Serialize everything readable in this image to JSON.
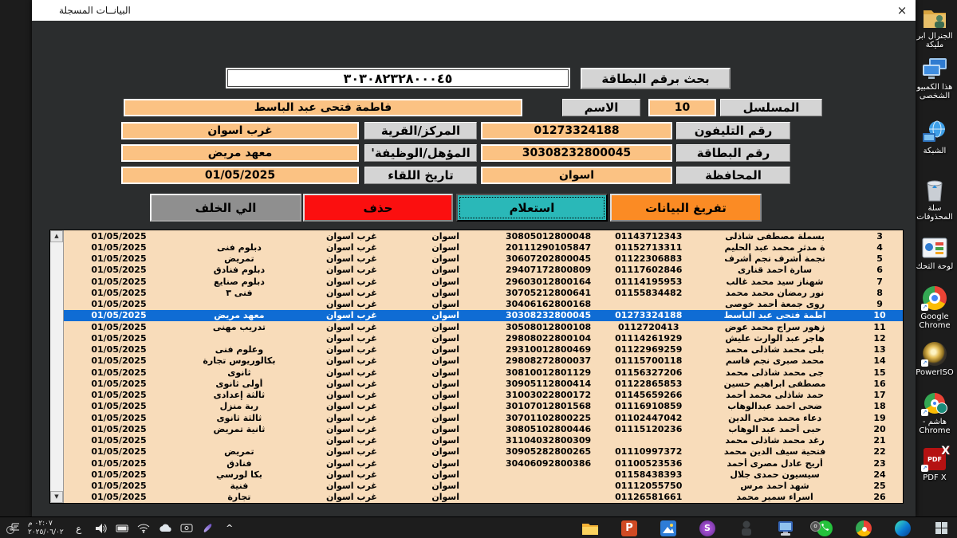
{
  "colors": {
    "window_bg": "#2b2d2e",
    "field_peach": "#fbc283",
    "table_peach": "#f8dcba",
    "selected_blue": "#0f6cd4",
    "button_orange": "#fb8b24",
    "button_teal": "#2ab8b8",
    "button_red": "#fb0f0f",
    "button_gray": "#8f8f8f"
  },
  "window": {
    "title": "البيانــات المسجلة",
    "close_label": "×"
  },
  "search": {
    "value": "٣٠٣٠٨٢٣٢٨٠٠٠٤٥",
    "button_label": "بحث برقم البطاقة"
  },
  "form": {
    "serial_label": "المسلسل",
    "serial_value": "10",
    "name_label": "الاسم",
    "name_value": "فاطمة فتحى عبد الباسط",
    "phone_label": "رقم التليفون",
    "phone_value": "01273324188",
    "center_label": "المركز/القرية",
    "center_value": "غرب اسوان",
    "card_label": "رقم البطاقة",
    "card_value": "30308232800045",
    "qual_label": "المؤهل/الوظيفة'",
    "qual_value": "معهد مريض",
    "gov_label": "المحافظة",
    "gov_value": "اسوان",
    "date_label": "تاريخ اللقاء",
    "date_value": "01/05/2025"
  },
  "buttons": {
    "export": "تفريغ البيانات",
    "inquiry": "استعلام",
    "delete": "حذف",
    "back": "الي الخلف"
  },
  "table": {
    "selected_serial": "10",
    "rows": [
      {
        "n": "3",
        "name": "بسملة مصطفى شاذلى",
        "phone": "01143712343",
        "card": "30805012800048",
        "gov": "اسوان",
        "center": "غرب اسوان",
        "qual": "",
        "date": "01/05/2025"
      },
      {
        "n": "4",
        "name": "ة مدثر محمد عبد الحليم",
        "phone": "01152713311",
        "card": "20111290105847",
        "gov": "اسوان",
        "center": "غرب اسوان",
        "qual": "دبلوم فنى",
        "date": "01/05/2025"
      },
      {
        "n": "5",
        "name": "نجمة أشرف نجم أشرف",
        "phone": "01122306883",
        "card": "30607202800045",
        "gov": "اسوان",
        "center": "غرب اسوان",
        "qual": "تمريض",
        "date": "01/05/2025"
      },
      {
        "n": "6",
        "name": "سارة احمد قنارى",
        "phone": "01117602846",
        "card": "29407172800809",
        "gov": "اسوان",
        "center": "غرب اسوان",
        "qual": "دبلوم فنادق",
        "date": "01/05/2025"
      },
      {
        "n": "7",
        "name": "شهناز سيد محمد غالب",
        "phone": "01114195953",
        "card": "29603012800164",
        "gov": "اسوان",
        "center": "غرب اسوان",
        "qual": "دبلوم صنايع",
        "date": "01/05/2025"
      },
      {
        "n": "8",
        "name": "نور رمضان محمد محمد",
        "phone": "01155834482",
        "card": "30705212800641",
        "gov": "اسوان",
        "center": "غرب اسوان",
        "qual": "فنى ٣",
        "date": "01/05/2025"
      },
      {
        "n": "9",
        "name": "روى جمعة أحمد خوصى",
        "phone": "",
        "card": "30406162800168",
        "gov": "اسوان",
        "center": "غرب اسوان",
        "qual": "",
        "date": "01/05/2025"
      },
      {
        "n": "10",
        "name": "اطمة فتحى عبد الباسط",
        "phone": "01273324188",
        "card": "30308232800045",
        "gov": "اسوان",
        "center": "غرب اسوان",
        "qual": "معهد مريض",
        "date": "01/05/2025"
      },
      {
        "n": "11",
        "name": "زهور سراج محمد عوض",
        "phone": "0112720413",
        "card": "30508012800108",
        "gov": "اسوان",
        "center": "غرب اسوان",
        "qual": "تدريب مهنى",
        "date": "01/05/2025"
      },
      {
        "n": "12",
        "name": "هاجر عبد الوارث عليش",
        "phone": "01114261929",
        "card": "29808022800104",
        "gov": "اسوان",
        "center": "غرب اسوان",
        "qual": "",
        "date": "01/05/2025"
      },
      {
        "n": "13",
        "name": "بلى محمد شاذلى محمد",
        "phone": "01122969259",
        "card": "29310012800469",
        "gov": "اسوان",
        "center": "غرب اسوان",
        "qual": "وعلوم فنى",
        "date": "01/05/2025"
      },
      {
        "n": "14",
        "name": "محمد صبرى نجم قاسم",
        "phone": "01115700118",
        "card": "29808272800037",
        "gov": "اسوان",
        "center": "غرب اسوان",
        "qual": "بكالوريوس تجارة",
        "date": "01/05/2025"
      },
      {
        "n": "15",
        "name": "جى محمد شاذلى محمد",
        "phone": "01156327206",
        "card": "30810012801129",
        "gov": "اسوان",
        "center": "غرب اسوان",
        "qual": "ثانوى",
        "date": "01/05/2025"
      },
      {
        "n": "16",
        "name": "مصطفى ابراهيم حسين",
        "phone": "01122865853",
        "card": "30905112800414",
        "gov": "اسوان",
        "center": "غرب اسوان",
        "qual": "أولى ثانوى",
        "date": "01/05/2025"
      },
      {
        "n": "17",
        "name": "حمد شاذلى محمد أحمد",
        "phone": "01145659266",
        "card": "31003022800172",
        "gov": "اسوان",
        "center": "غرب اسوان",
        "qual": "ثالثة إعدادى",
        "date": "01/05/2025"
      },
      {
        "n": "18",
        "name": "ضحى احمد عبدالوهاب",
        "phone": "01116910859",
        "card": "30107012801568",
        "gov": "اسوان",
        "center": "غرب اسوان",
        "qual": "ربة منزل",
        "date": "01/05/2025"
      },
      {
        "n": "19",
        "name": "دعاء محمد محى الدين",
        "phone": "01102447042",
        "card": "30701102800225",
        "gov": "اسوان",
        "center": "غرب اسوان",
        "qual": "ثالثة ثانوى",
        "date": "01/05/2025"
      },
      {
        "n": "20",
        "name": "حبى أحمد عبد الوهاب",
        "phone": "01115120236",
        "card": "30805102800446",
        "gov": "اسوان",
        "center": "غرب اسوان",
        "qual": "ثانية تمريض",
        "date": "01/05/2025"
      },
      {
        "n": "21",
        "name": "رغد محمد شاذلى محمد",
        "phone": "",
        "card": "31104032800309",
        "gov": "اسوان",
        "center": "غرب اسوان",
        "qual": "",
        "date": "01/05/2025"
      },
      {
        "n": "22",
        "name": "فتحية سيف الدين محمد",
        "phone": "01110997372",
        "card": "30905282800265",
        "gov": "اسوان",
        "center": "غرب اسوان",
        "qual": "تمريض",
        "date": "01/05/2025"
      },
      {
        "n": "23",
        "name": "أريج عادل مصرى أحمد",
        "phone": "01100523536",
        "card": "30406092800386",
        "gov": "اسوان",
        "center": "غرب اسوان",
        "qual": "فنادق",
        "date": "01/05/2025"
      },
      {
        "n": "24",
        "name": "سيسيون حمدى جلال",
        "phone": "01158438393",
        "card": "",
        "gov": "اسوان",
        "center": "غرب اسوان",
        "qual": "بكا لورسي",
        "date": "01/05/2025"
      },
      {
        "n": "25",
        "name": "شهد احمد مرس",
        "phone": "01112055750",
        "card": "",
        "gov": "اسوان",
        "center": "غرب اسوان",
        "qual": "فنية",
        "date": "01/05/2025"
      },
      {
        "n": "26",
        "name": "اسراء سمير محمد",
        "phone": "01126581661",
        "card": "",
        "gov": "اسوان",
        "center": "غرب اسوان",
        "qual": "تجارة",
        "date": "01/05/2025"
      }
    ]
  },
  "desktop": {
    "icons": [
      {
        "icon": "shared-folder-icon",
        "label": "الجنرال ابر\nمليكة"
      },
      {
        "icon": "this-pc-icon",
        "label": "هذا الكمبيو\nالشخصى"
      },
      {
        "icon": "network-icon",
        "label": "الشبكة"
      },
      {
        "icon": "recycle-bin-icon",
        "label": "سلة\nالمحذوفات"
      },
      {
        "icon": "control-panel-icon",
        "label": "لوحة التحك"
      },
      {
        "icon": "chrome-icon",
        "label": "Google\nChrome"
      },
      {
        "icon": "poweriso-icon",
        "label": "PowerISO"
      },
      {
        "icon": "chrome-profile-icon",
        "label": "هاشم -\nChrome"
      },
      {
        "icon": "pdf-x-icon",
        "label": "PDF X"
      }
    ]
  },
  "taskbar": {
    "time": "٠٢:٠٧ م",
    "date": "٢٠٢٥/٠٦/٠٢",
    "language": "ع",
    "chevron": "^",
    "pdf_text": "PDF"
  }
}
